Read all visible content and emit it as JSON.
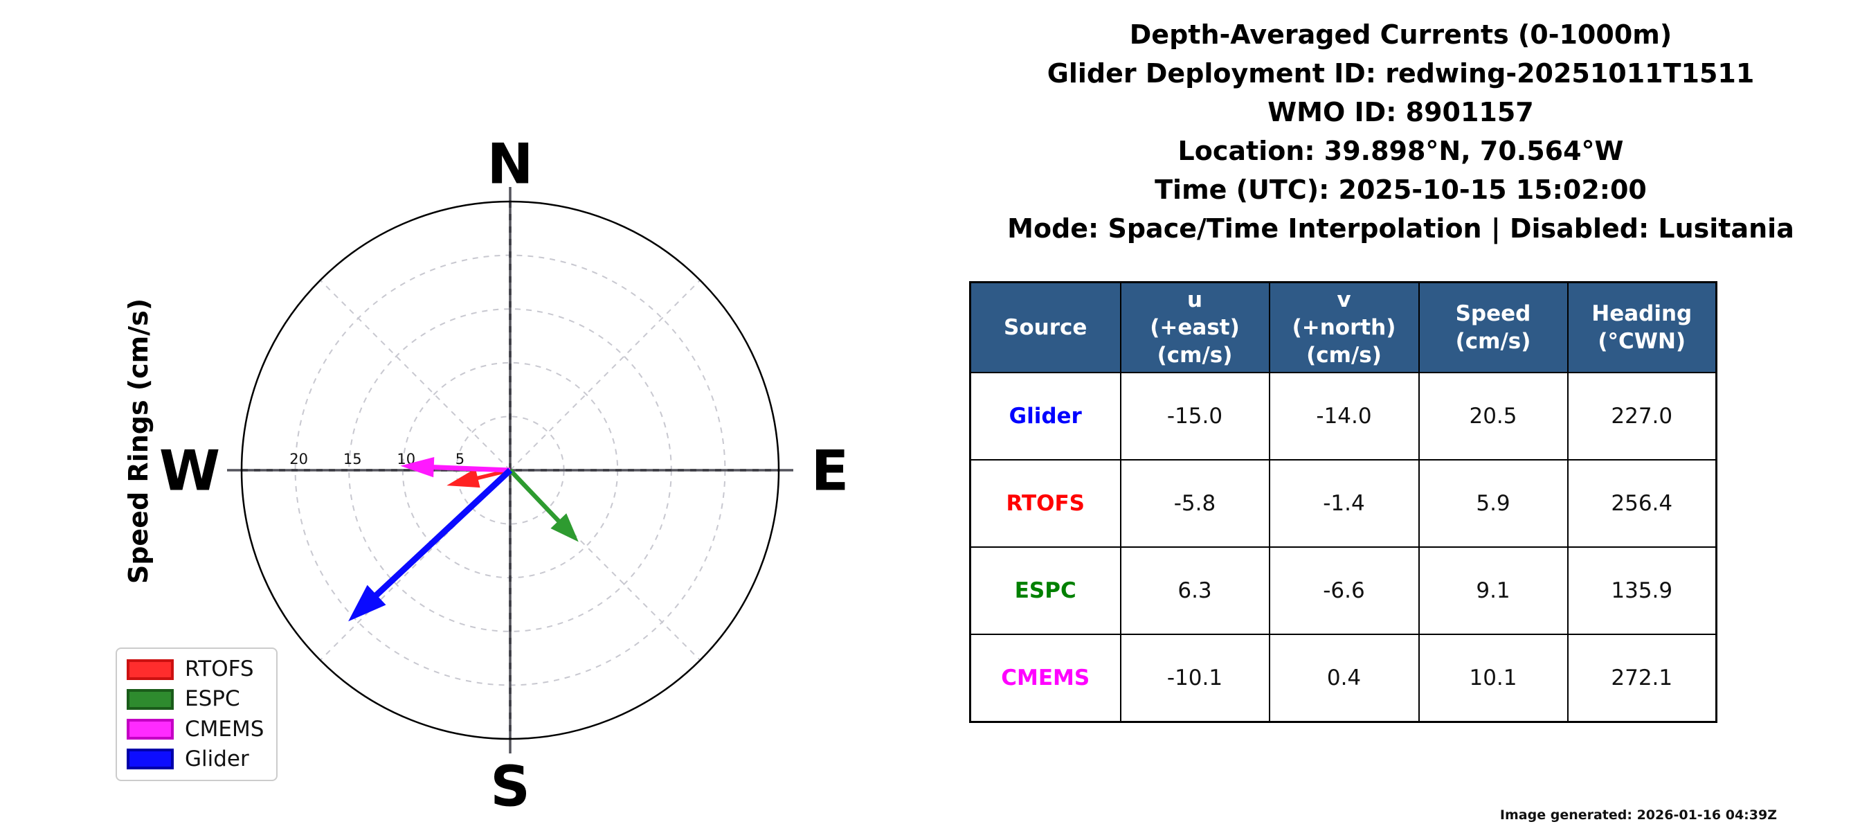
{
  "header": {
    "lines": [
      "Depth-Averaged Currents (0-1000m)",
      "Glider Deployment ID: redwing-20251011T1511",
      "WMO ID: 8901157",
      "Location: 39.898°N, 70.564°W",
      "Time (UTC): 2025-10-15 15:02:00",
      "Mode: Space/Time Interpolation | Disabled: Lusitania"
    ]
  },
  "chart_data": {
    "type": "polar_vector",
    "title": "Depth-Averaged Currents (0-1000m)",
    "axis_label": "Speed Rings (cm/s)",
    "compass_labels": {
      "n": "N",
      "e": "E",
      "s": "S",
      "w": "W"
    },
    "ring_ticks_cms": [
      20,
      15,
      10,
      5
    ],
    "dashed_rings_cms": [
      5,
      10,
      15,
      20,
      25
    ],
    "rmax_cms": 25,
    "grid": true,
    "series": [
      {
        "name": "RTOFS",
        "u": -5.8,
        "v": -1.4,
        "speed": 5.9,
        "heading_cwn": 256.4,
        "color": "#FF2222"
      },
      {
        "name": "ESPC",
        "u": 6.3,
        "v": -6.6,
        "speed": 9.1,
        "heading_cwn": 135.9,
        "color": "#2E9B30"
      },
      {
        "name": "CMEMS",
        "u": -10.1,
        "v": 0.4,
        "speed": 10.1,
        "heading_cwn": 272.1,
        "color": "#FF19FF"
      },
      {
        "name": "Glider",
        "u": -15.0,
        "v": -14.0,
        "speed": 20.5,
        "heading_cwn": 227.0,
        "color": "#0A0AFF"
      }
    ],
    "legend_position": "lower left"
  },
  "legend": {
    "items": [
      {
        "label": "RTOFS",
        "fill": "#FF2D2D",
        "edge": "#CC1111"
      },
      {
        "label": "ESPC",
        "fill": "#2E8B2E",
        "edge": "#1A5C1A"
      },
      {
        "label": "CMEMS",
        "fill": "#FF2BFF",
        "edge": "#C400C4"
      },
      {
        "label": "Glider",
        "fill": "#0D0DFF",
        "edge": "#0000A8"
      }
    ]
  },
  "table": {
    "header_bg": "#2F5A87",
    "headers": [
      "Source",
      "u\n(+east)\n(cm/s)",
      "v\n(+north)\n(cm/s)",
      "Speed\n(cm/s)",
      "Heading\n(°CWN)"
    ],
    "rows": [
      {
        "source": "Glider",
        "color": "#0000FF",
        "values": [
          "-15.0",
          "-14.0",
          "20.5",
          "227.0"
        ]
      },
      {
        "source": "RTOFS",
        "color": "#FF0000",
        "values": [
          "-5.8",
          "-1.4",
          "5.9",
          "256.4"
        ]
      },
      {
        "source": "ESPC",
        "color": "#008000",
        "values": [
          "6.3",
          "-6.6",
          "9.1",
          "135.9"
        ]
      },
      {
        "source": "CMEMS",
        "color": "#FF00FF",
        "values": [
          "-10.1",
          "0.4",
          "10.1",
          "272.1"
        ]
      }
    ]
  },
  "footer": {
    "generated": "Image generated: 2026-01-16 04:39Z"
  }
}
